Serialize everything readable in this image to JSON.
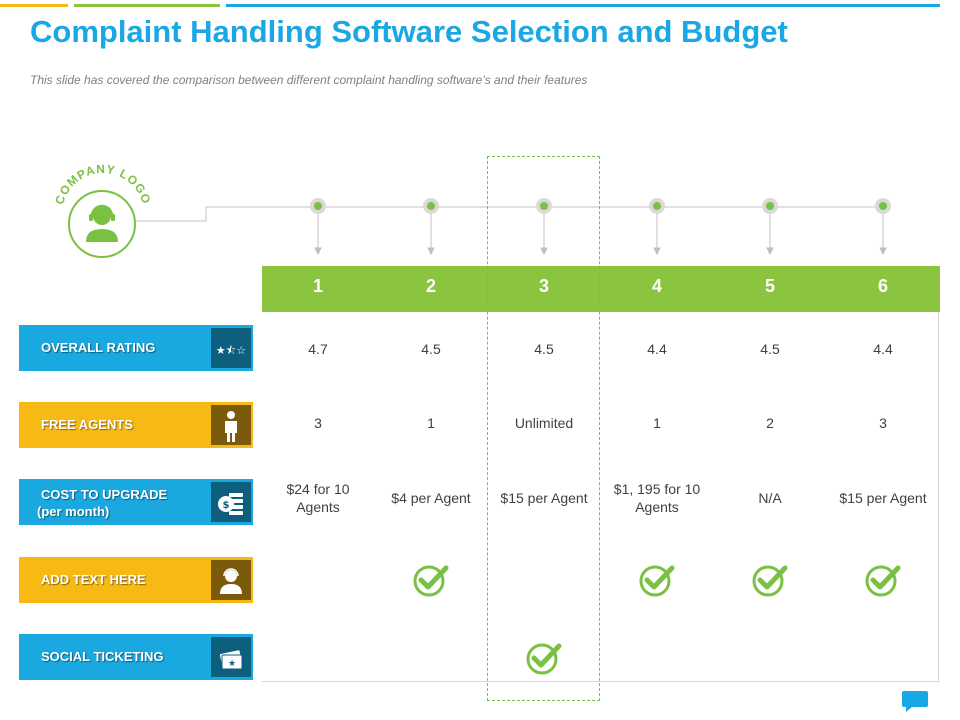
{
  "slide": {
    "title": "Complaint Handling Software Selection and Budget",
    "subtitle": "This slide has covered the comparison between different complaint handling software’s  and their features",
    "logo_text": "COMPANY LOGO"
  },
  "colors": {
    "title_blue": "#1aa7e6",
    "green": "#8bc43f",
    "blue_label": "#19a8e0",
    "yellow_label": "#f7b913"
  },
  "columns": [
    "1",
    "2",
    "3",
    "4",
    "5",
    "6"
  ],
  "highlighted_column": "3",
  "rows": [
    {
      "label": "OVERALL RATING",
      "icon": "star-rating-icon",
      "color": "blue",
      "cells": [
        "4.7",
        "4.5",
        "4.5",
        "4.4",
        "4.5",
        "4.4"
      ]
    },
    {
      "label": "FREE AGENTS",
      "icon": "agent-person-icon",
      "color": "yellow",
      "cells": [
        "3",
        "1",
        "Unlimited",
        "1",
        "2",
        "3"
      ]
    },
    {
      "label_line1": "COST TO UPGRADE",
      "label_line2": "(per month)",
      "icon": "money-stack-icon",
      "color": "blue",
      "cells": [
        [
          "$24 for 10",
          "Agents"
        ],
        [
          "$4 per Agent"
        ],
        [
          "$15 per Agent"
        ],
        [
          "$1, 195 for 10",
          "Agents"
        ],
        [
          "N/A"
        ],
        [
          "$15 per Agent"
        ]
      ]
    },
    {
      "label": "ADD TEXT HERE",
      "icon": "headset-user-icon",
      "color": "yellow",
      "checks": [
        false,
        true,
        false,
        true,
        true,
        true
      ]
    },
    {
      "label": "SOCIAL TICKETING",
      "icon": "ticket-icon",
      "color": "blue",
      "checks": [
        false,
        false,
        true,
        false,
        false,
        false
      ]
    }
  ]
}
